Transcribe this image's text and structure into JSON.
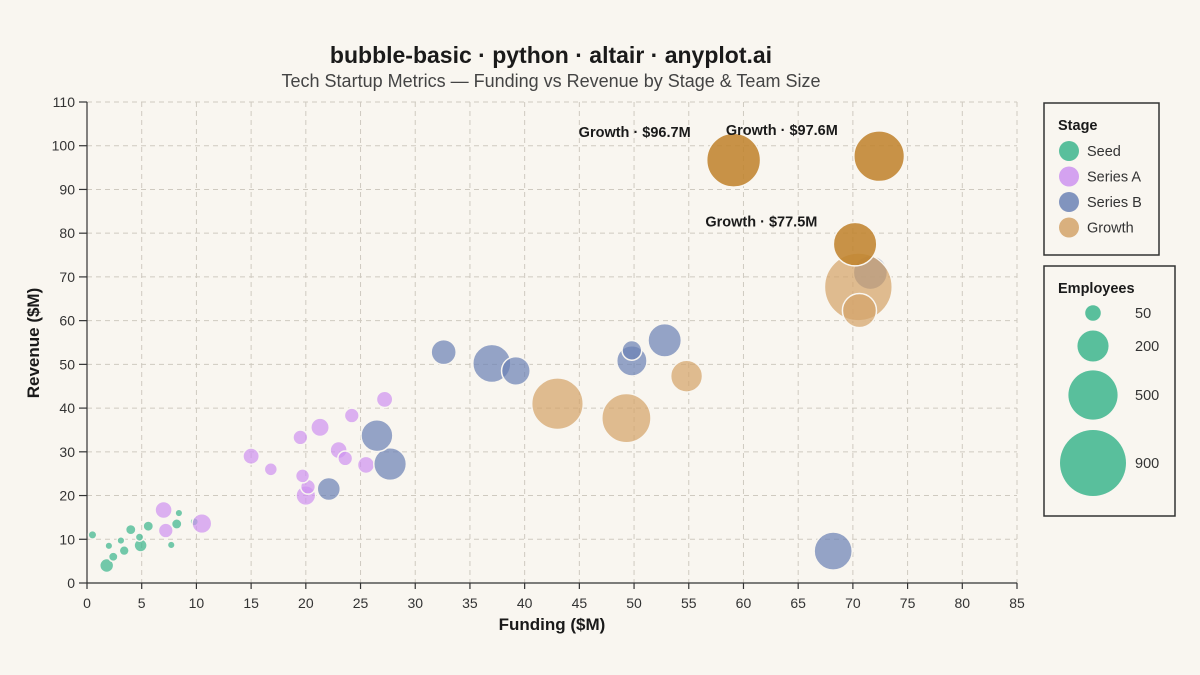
{
  "chart_data": {
    "type": "scatter",
    "title": "bubble-basic · python · altair · anyplot.ai",
    "subtitle": "Tech Startup Metrics — Funding vs Revenue by Stage & Team Size",
    "xlabel": "Funding ($M)",
    "ylabel": "Revenue ($M)",
    "xlim": [
      0,
      85
    ],
    "ylim": [
      0,
      110
    ],
    "x_ticks": [
      0,
      5,
      10,
      15,
      20,
      25,
      30,
      35,
      40,
      45,
      50,
      55,
      60,
      65,
      70,
      75,
      80,
      85
    ],
    "y_ticks": [
      0,
      10,
      20,
      30,
      40,
      50,
      60,
      70,
      80,
      90,
      100,
      110
    ],
    "grid": true,
    "legend_placement": "right",
    "size_encoding": "Employees",
    "stage_legend": {
      "title": "Stage",
      "items": [
        {
          "label": "Seed",
          "color": "#3DB58D"
        },
        {
          "label": "Series A",
          "color": "#CE93F0"
        },
        {
          "label": "Series B",
          "color": "#6C82B5"
        },
        {
          "label": "Growth",
          "color": "#D4A36A"
        }
      ]
    },
    "size_legend": {
      "title": "Employees",
      "items": [
        {
          "label": "50",
          "value": 50
        },
        {
          "label": "200",
          "value": 200
        },
        {
          "label": "500",
          "value": 500
        },
        {
          "label": "900",
          "value": 900
        }
      ]
    },
    "series": [
      {
        "name": "Seed",
        "color": "#3DB58D",
        "points": [
          {
            "x": 0.5,
            "y": 11,
            "size": 15
          },
          {
            "x": 1.8,
            "y": 4,
            "size": 40
          },
          {
            "x": 2,
            "y": 8.5,
            "size": 12
          },
          {
            "x": 2.4,
            "y": 6,
            "size": 18
          },
          {
            "x": 3.1,
            "y": 9.7,
            "size": 12
          },
          {
            "x": 3.4,
            "y": 7.4,
            "size": 20
          },
          {
            "x": 4,
            "y": 12.2,
            "size": 22
          },
          {
            "x": 4.8,
            "y": 10.5,
            "size": 14
          },
          {
            "x": 4.9,
            "y": 8.6,
            "size": 35
          },
          {
            "x": 5.6,
            "y": 13,
            "size": 22
          },
          {
            "x": 7.7,
            "y": 8.7,
            "size": 12
          },
          {
            "x": 8.2,
            "y": 13.5,
            "size": 22
          },
          {
            "x": 8.4,
            "y": 16,
            "size": 12
          },
          {
            "x": 9.8,
            "y": 14,
            "size": 14
          }
        ]
      },
      {
        "name": "Series A",
        "color": "#CE93F0",
        "points": [
          {
            "x": 7,
            "y": 16.7,
            "size": 60
          },
          {
            "x": 7.2,
            "y": 12,
            "size": 45
          },
          {
            "x": 10.5,
            "y": 13.6,
            "size": 80
          },
          {
            "x": 15,
            "y": 29,
            "size": 55
          },
          {
            "x": 16.8,
            "y": 26,
            "size": 35
          },
          {
            "x": 19.5,
            "y": 33.3,
            "size": 45
          },
          {
            "x": 19.7,
            "y": 24.5,
            "size": 40
          },
          {
            "x": 20,
            "y": 20,
            "size": 80
          },
          {
            "x": 20.2,
            "y": 22,
            "size": 45
          },
          {
            "x": 21.3,
            "y": 35.6,
            "size": 70
          },
          {
            "x": 23,
            "y": 30.4,
            "size": 60
          },
          {
            "x": 23.6,
            "y": 28.5,
            "size": 45
          },
          {
            "x": 24.2,
            "y": 38.3,
            "size": 45
          },
          {
            "x": 25.5,
            "y": 27,
            "size": 60
          },
          {
            "x": 27.2,
            "y": 42,
            "size": 55
          }
        ]
      },
      {
        "name": "Series B",
        "color": "#6C82B5",
        "points": [
          {
            "x": 22.1,
            "y": 21.5,
            "size": 110
          },
          {
            "x": 26.5,
            "y": 33.7,
            "size": 210
          },
          {
            "x": 27.7,
            "y": 27.2,
            "size": 220
          },
          {
            "x": 32.6,
            "y": 52.8,
            "size": 130
          },
          {
            "x": 37,
            "y": 50.2,
            "size": 300
          },
          {
            "x": 39.2,
            "y": 48.5,
            "size": 170
          },
          {
            "x": 49.8,
            "y": 50.8,
            "size": 190
          },
          {
            "x": 49.8,
            "y": 53.2,
            "size": 80
          },
          {
            "x": 52.8,
            "y": 55.5,
            "size": 230
          },
          {
            "x": 68.2,
            "y": 7.3,
            "size": 300
          },
          {
            "x": 71.6,
            "y": 71,
            "size": 240
          }
        ]
      },
      {
        "name": "Growth",
        "color": "#D4A36A",
        "points": [
          {
            "x": 43,
            "y": 41,
            "size": 550
          },
          {
            "x": 49.3,
            "y": 37.7,
            "size": 500
          },
          {
            "x": 54.8,
            "y": 47.3,
            "size": 210
          },
          {
            "x": 59.1,
            "y": 96.7,
            "size": 600
          },
          {
            "x": 70.2,
            "y": 77.5,
            "size": 390
          },
          {
            "x": 70.5,
            "y": 67.7,
            "size": 950
          },
          {
            "x": 70.6,
            "y": 62.3,
            "size": 240
          },
          {
            "x": 72.4,
            "y": 97.6,
            "size": 530
          }
        ]
      }
    ],
    "annotations": [
      {
        "text": "Growth · $97.6M",
        "x": 72.4,
        "y": 97.6
      },
      {
        "text": "Growth · $96.7M",
        "x": 59.1,
        "y": 96.7
      },
      {
        "text": "Growth · $77.5M",
        "x": 70.2,
        "y": 77.5
      }
    ]
  }
}
